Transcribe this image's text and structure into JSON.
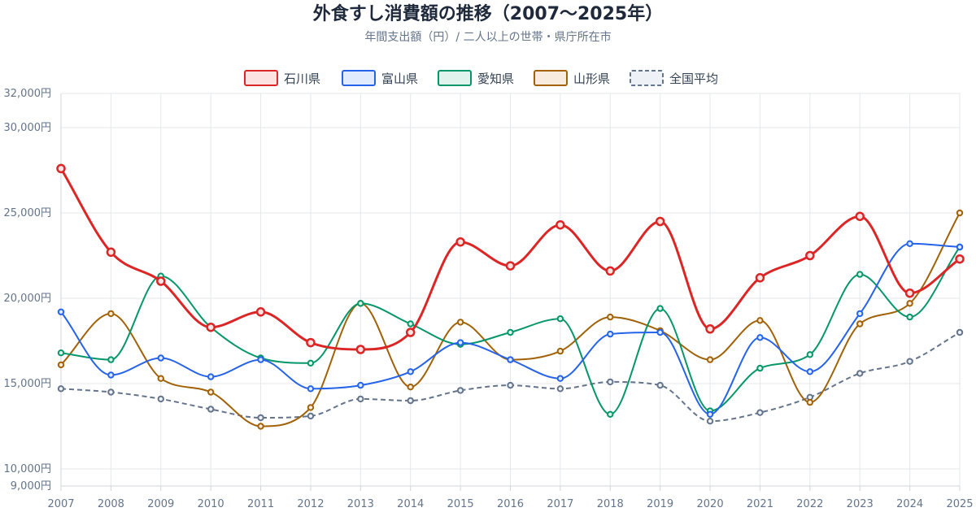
{
  "chart_data": {
    "type": "line",
    "title": "外食すし消費額の推移（2007〜2025年）",
    "subtitle": "年間支出額（円）/ 二人以上の世帯・県庁所在市",
    "categories": [
      "2007",
      "2008",
      "2009",
      "2010",
      "2011",
      "2012",
      "2013",
      "2014",
      "2015",
      "2016",
      "2017",
      "2018",
      "2019",
      "2020",
      "2021",
      "2022",
      "2023",
      "2024",
      "2025"
    ],
    "y_ticks": [
      {
        "value": 32000,
        "label": "32,000円"
      },
      {
        "value": 30000,
        "label": "30,000円"
      },
      {
        "value": 25000,
        "label": "25,000円"
      },
      {
        "value": 20000,
        "label": "20,000円"
      },
      {
        "value": 15000,
        "label": "15,000円"
      },
      {
        "value": 10000,
        "label": "10,000円"
      },
      {
        "value": 9000,
        "label": "9,000円"
      }
    ],
    "ylim": [
      9000,
      32000
    ],
    "grid": true,
    "legend_position": "top",
    "series": [
      {
        "name": "石川県",
        "color": "#dc2626",
        "fill": "#fde2e2",
        "dashed": false,
        "bold": true,
        "values": [
          27600,
          22700,
          21000,
          18300,
          19200,
          17400,
          17000,
          18000,
          23300,
          21900,
          24300,
          21600,
          24500,
          18200,
          21200,
          22500,
          24800,
          20300,
          22300
        ]
      },
      {
        "name": "富山県",
        "color": "#2563eb",
        "fill": "#e0ebfd",
        "dashed": false,
        "bold": false,
        "values": [
          19200,
          15500,
          16500,
          15400,
          16400,
          14700,
          14900,
          15700,
          17400,
          16400,
          15300,
          17900,
          18000,
          13200,
          17700,
          15700,
          19100,
          23200,
          23000
        ]
      },
      {
        "name": "愛知県",
        "color": "#059669",
        "fill": "#e0f3ec",
        "dashed": false,
        "bold": false,
        "values": [
          16800,
          16400,
          21300,
          18300,
          16500,
          16200,
          19700,
          18500,
          17300,
          18000,
          18800,
          13200,
          19400,
          13400,
          15900,
          16700,
          21400,
          18900,
          23000
        ]
      },
      {
        "name": "山形県",
        "color": "#a16207",
        "fill": "#f7ecdd",
        "dashed": false,
        "bold": false,
        "values": [
          16100,
          19100,
          15300,
          14500,
          12500,
          13600,
          19700,
          14800,
          18600,
          16400,
          16900,
          18900,
          18100,
          16400,
          18700,
          13900,
          18500,
          19700,
          25000
        ]
      },
      {
        "name": "全国平均",
        "color": "#64748b",
        "fill": "#eef1f5",
        "dashed": true,
        "bold": false,
        "values": [
          14700,
          14500,
          14100,
          13500,
          13000,
          13100,
          14100,
          14000,
          14600,
          14900,
          14700,
          15100,
          14900,
          12800,
          13300,
          14200,
          15600,
          16300,
          18000
        ]
      }
    ]
  }
}
